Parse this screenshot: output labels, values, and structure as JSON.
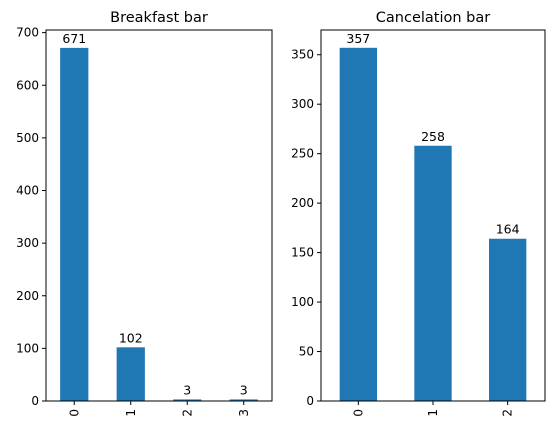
{
  "chart_data": [
    {
      "type": "bar",
      "title": "Breakfast bar",
      "xlabel": "",
      "ylabel": "",
      "categories": [
        "0",
        "1",
        "2",
        "3"
      ],
      "values": [
        671,
        102,
        3,
        3
      ],
      "data_labels": [
        "671",
        "102",
        "3",
        "3"
      ],
      "ylim": [
        0,
        705
      ],
      "yticks": [
        0,
        100,
        200,
        300,
        400,
        500,
        600,
        700
      ],
      "grid": false,
      "bar_color": "#1f77b4",
      "x_tick_rotation": 90
    },
    {
      "type": "bar",
      "title": "Cancelation bar",
      "xlabel": "",
      "ylabel": "",
      "categories": [
        "0",
        "1",
        "2"
      ],
      "values": [
        357,
        258,
        164
      ],
      "data_labels": [
        "357",
        "258",
        "164"
      ],
      "ylim": [
        0,
        375
      ],
      "yticks": [
        0,
        50,
        100,
        150,
        200,
        250,
        300,
        350
      ],
      "grid": false,
      "bar_color": "#1f77b4",
      "x_tick_rotation": 90
    }
  ]
}
